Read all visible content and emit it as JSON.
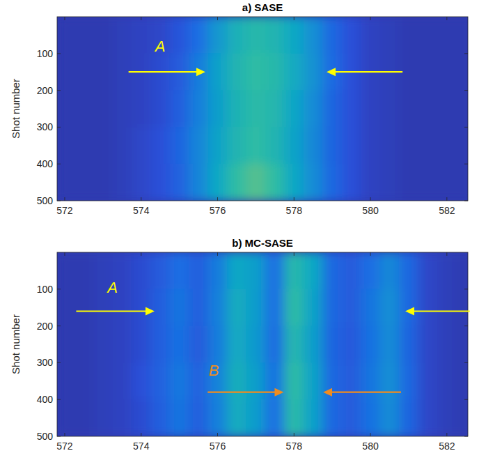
{
  "chart_data": [
    {
      "type": "heatmap",
      "title": "a) SASE",
      "y_label": "Shot number",
      "xlim": [
        571.8,
        582.55
      ],
      "xticks": [
        572,
        574,
        576,
        578,
        580,
        582
      ],
      "ylim": [
        500,
        0
      ],
      "yticks": [
        100,
        200,
        300,
        400,
        500
      ],
      "x_bins": [
        571.75,
        572.25,
        572.75,
        573.25,
        573.75,
        574.25,
        574.75,
        575.25,
        575.75,
        576.25,
        576.75,
        577.25,
        577.75,
        578.25,
        578.75,
        579.25,
        579.75,
        580.25,
        580.75,
        581.25,
        581.75,
        582.25,
        582.75
      ],
      "y_bins": [
        0,
        100,
        200,
        300,
        400,
        500
      ],
      "cells": [
        [
          0.05,
          0.05,
          0.05,
          0.06,
          0.07,
          0.08,
          0.12,
          0.2,
          0.33,
          0.44,
          0.48,
          0.46,
          0.4,
          0.3,
          0.18,
          0.1,
          0.07,
          0.06,
          0.05,
          0.05,
          0.05,
          0.05
        ],
        [
          0.05,
          0.05,
          0.05,
          0.06,
          0.07,
          0.09,
          0.14,
          0.24,
          0.37,
          0.46,
          0.5,
          0.48,
          0.41,
          0.31,
          0.19,
          0.1,
          0.07,
          0.06,
          0.05,
          0.05,
          0.05,
          0.05
        ],
        [
          0.05,
          0.05,
          0.05,
          0.06,
          0.07,
          0.09,
          0.15,
          0.25,
          0.36,
          0.45,
          0.49,
          0.47,
          0.39,
          0.29,
          0.17,
          0.1,
          0.07,
          0.06,
          0.05,
          0.05,
          0.05,
          0.05
        ],
        [
          0.05,
          0.05,
          0.05,
          0.06,
          0.08,
          0.1,
          0.17,
          0.27,
          0.38,
          0.46,
          0.5,
          0.46,
          0.38,
          0.28,
          0.17,
          0.1,
          0.07,
          0.06,
          0.05,
          0.05,
          0.05,
          0.05
        ],
        [
          0.05,
          0.05,
          0.05,
          0.06,
          0.08,
          0.1,
          0.16,
          0.27,
          0.4,
          0.5,
          0.55,
          0.5,
          0.4,
          0.29,
          0.18,
          0.1,
          0.07,
          0.06,
          0.05,
          0.05,
          0.05,
          0.05
        ]
      ],
      "annotations": [
        {
          "text": "A",
          "x": 574.5,
          "y": 95,
          "color": "#ffff00"
        }
      ],
      "arrows": [
        {
          "x_from": 573.67,
          "x_to": 575.68,
          "y": 150,
          "color": "#ffff00"
        },
        {
          "x_from": 580.84,
          "x_to": 578.85,
          "y": 150,
          "color": "#ffff00"
        }
      ]
    },
    {
      "type": "heatmap",
      "title": "b) MC-SASE",
      "y_label": "Shot number",
      "xlim": [
        571.8,
        582.55
      ],
      "xticks": [
        572,
        574,
        576,
        578,
        580,
        582
      ],
      "ylim": [
        500,
        0
      ],
      "yticks": [
        100,
        200,
        300,
        400,
        500
      ],
      "x_bins": [
        571.75,
        572.25,
        572.75,
        573.25,
        573.75,
        574.25,
        574.75,
        575.25,
        575.75,
        576.25,
        576.75,
        577.25,
        577.75,
        578.25,
        578.75,
        579.25,
        579.75,
        580.25,
        580.75,
        581.25,
        581.75,
        582.25,
        582.75
      ],
      "y_bins": [
        0,
        100,
        200,
        300,
        400,
        500
      ],
      "cells": [
        [
          0.05,
          0.05,
          0.06,
          0.07,
          0.09,
          0.14,
          0.2,
          0.15,
          0.24,
          0.4,
          0.36,
          0.2,
          0.48,
          0.4,
          0.18,
          0.14,
          0.2,
          0.28,
          0.18,
          0.08,
          0.06,
          0.05
        ],
        [
          0.05,
          0.05,
          0.06,
          0.07,
          0.09,
          0.15,
          0.22,
          0.15,
          0.25,
          0.42,
          0.35,
          0.2,
          0.5,
          0.38,
          0.18,
          0.14,
          0.22,
          0.3,
          0.18,
          0.08,
          0.06,
          0.05
        ],
        [
          0.05,
          0.05,
          0.06,
          0.07,
          0.09,
          0.15,
          0.21,
          0.14,
          0.24,
          0.41,
          0.34,
          0.19,
          0.47,
          0.36,
          0.17,
          0.13,
          0.21,
          0.29,
          0.17,
          0.08,
          0.06,
          0.05
        ],
        [
          0.05,
          0.05,
          0.06,
          0.07,
          0.1,
          0.16,
          0.23,
          0.16,
          0.26,
          0.43,
          0.36,
          0.21,
          0.5,
          0.38,
          0.18,
          0.14,
          0.22,
          0.3,
          0.18,
          0.08,
          0.06,
          0.05
        ],
        [
          0.05,
          0.05,
          0.06,
          0.07,
          0.09,
          0.15,
          0.22,
          0.15,
          0.25,
          0.42,
          0.35,
          0.2,
          0.49,
          0.37,
          0.18,
          0.14,
          0.21,
          0.29,
          0.17,
          0.08,
          0.06,
          0.05
        ]
      ],
      "annotations": [
        {
          "text": "A",
          "x": 573.25,
          "y": 110,
          "color": "#ffff00"
        },
        {
          "text": "B",
          "x": 575.9,
          "y": 335,
          "color": "#f08c1e"
        }
      ],
      "arrows": [
        {
          "x_from": 572.3,
          "x_to": 574.35,
          "y": 160,
          "color": "#ffff00"
        },
        {
          "x_from": 582.6,
          "x_to": 580.91,
          "y": 160,
          "color": "#ffff00"
        },
        {
          "x_from": 575.74,
          "x_to": 577.73,
          "y": 380,
          "color": "#f08c1e"
        },
        {
          "x_from": 580.8,
          "x_to": 578.76,
          "y": 380,
          "color": "#f08c1e"
        }
      ]
    }
  ]
}
